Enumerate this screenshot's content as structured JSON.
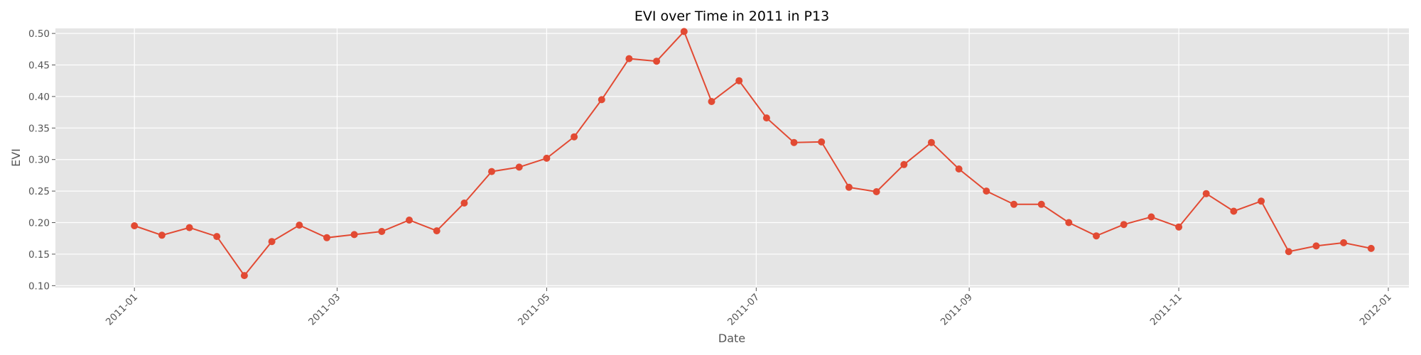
{
  "chart_data": {
    "type": "line",
    "title": "EVI over Time in 2011 in P13",
    "xlabel": "Date",
    "ylabel": "EVI",
    "x_ticks": [
      "2011-01",
      "2011-03",
      "2011-05",
      "2011-07",
      "2011-09",
      "2011-11",
      "2012-01"
    ],
    "y_ticks": [
      "0.10",
      "0.15",
      "0.20",
      "0.25",
      "0.30",
      "0.35",
      "0.40",
      "0.45",
      "0.50"
    ],
    "xlim": [
      "2010-12-09",
      "2012-01-07"
    ],
    "ylim": [
      0.097,
      0.508
    ],
    "grid": true,
    "style": "ggplot",
    "colors": {
      "line": "#E24A33",
      "background": "#E5E5E5",
      "grid": "#FFFFFF"
    },
    "series": [
      {
        "x": [
          "2011-01-01",
          "2011-01-09",
          "2011-01-17",
          "2011-01-25",
          "2011-02-02",
          "2011-02-10",
          "2011-02-18",
          "2011-02-26",
          "2011-03-06",
          "2011-03-14",
          "2011-03-22",
          "2011-03-30",
          "2011-04-07",
          "2011-04-15",
          "2011-04-23",
          "2011-05-01",
          "2011-05-09",
          "2011-05-17",
          "2011-05-25",
          "2011-06-02",
          "2011-06-10",
          "2011-06-18",
          "2011-06-26",
          "2011-07-04",
          "2011-07-12",
          "2011-07-20",
          "2011-07-28",
          "2011-08-05",
          "2011-08-13",
          "2011-08-21",
          "2011-08-29",
          "2011-09-06",
          "2011-09-14",
          "2011-09-22",
          "2011-09-30",
          "2011-10-08",
          "2011-10-16",
          "2011-10-24",
          "2011-11-01",
          "2011-11-09",
          "2011-11-17",
          "2011-11-25",
          "2011-12-03",
          "2011-12-11",
          "2011-12-19",
          "2011-12-27"
        ],
        "y": [
          0.195,
          0.18,
          0.192,
          0.178,
          0.116,
          0.17,
          0.196,
          0.176,
          0.181,
          0.186,
          0.204,
          0.187,
          0.231,
          0.281,
          0.288,
          0.302,
          0.336,
          0.395,
          0.46,
          0.456,
          0.503,
          0.392,
          0.425,
          0.366,
          0.327,
          0.328,
          0.256,
          0.249,
          0.292,
          0.327,
          0.285,
          0.25,
          0.229,
          0.229,
          0.2,
          0.179,
          0.197,
          0.209,
          0.193,
          0.246,
          0.218,
          0.234,
          0.154,
          0.163,
          0.168,
          0.159
        ]
      }
    ]
  }
}
